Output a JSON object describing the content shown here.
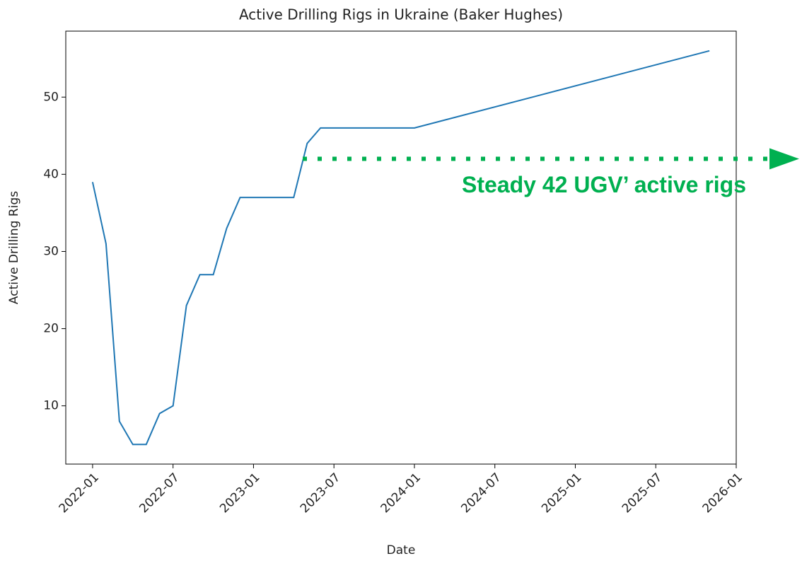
{
  "chart_data": {
    "type": "line",
    "title": "Active Drilling Rigs in Ukraine (Baker Hughes)",
    "x_label": "Date",
    "y_label": "Active Drilling Rigs",
    "x": [
      "2022-01",
      "2022-02",
      "2022-03",
      "2022-04",
      "2022-05",
      "2022-06",
      "2022-07",
      "2022-08",
      "2022-09",
      "2022-10",
      "2022-11",
      "2022-12",
      "2023-01",
      "2023-02",
      "2023-03",
      "2023-04",
      "2023-05",
      "2023-06",
      "2023-07",
      "2023-08",
      "2023-09",
      "2023-10",
      "2023-11",
      "2023-12",
      "2024-01",
      "2025-11"
    ],
    "series": [
      {
        "name": "Active Drilling Rigs",
        "color": "#1f77b4",
        "values": [
          39,
          31,
          8,
          5,
          5,
          9,
          10,
          23,
          27,
          27,
          33,
          37,
          37,
          37,
          37,
          37,
          44,
          46,
          46,
          46,
          46,
          46,
          46,
          46,
          46,
          56
        ]
      }
    ],
    "xlim": [
      "2021-11",
      "2026-01"
    ],
    "xticks": [
      "2022-01",
      "2022-07",
      "2023-01",
      "2023-07",
      "2024-01",
      "2024-07",
      "2025-01",
      "2025-07",
      "2026-01"
    ],
    "ylim": [
      2.45,
      58.55
    ],
    "yticks": [
      10,
      20,
      30,
      40,
      50
    ],
    "grid": false,
    "annotation": {
      "text": "Steady 42 UGV’ active rigs",
      "y": 42,
      "color": "#00b050"
    }
  }
}
